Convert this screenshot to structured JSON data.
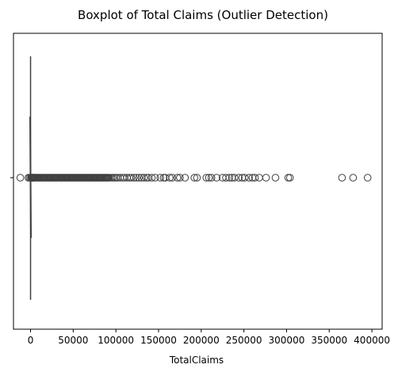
{
  "chart_data": {
    "type": "box",
    "title": "Boxplot of Total Claims (Outlier Detection)",
    "xlabel": "TotalClaims",
    "ylabel": "",
    "orientation": "horizontal",
    "xlim": [
      -20000,
      412000
    ],
    "x_ticks": [
      0,
      50000,
      100000,
      150000,
      200000,
      250000,
      300000,
      350000,
      400000
    ],
    "x_tick_labels": [
      "0",
      "50000",
      "100000",
      "150000",
      "200000",
      "250000",
      "300000",
      "350000",
      "400000"
    ],
    "y_tick_labels": [
      ""
    ],
    "grid": false,
    "box": {
      "min": 0,
      "q1": 0,
      "median": 0,
      "q3": 0,
      "max": 0
    },
    "outliers": [
      -12000,
      -2500,
      -1000,
      500,
      1000,
      1500,
      2000,
      2500,
      3000,
      3500,
      4000,
      5000,
      6000,
      7000,
      8000,
      9000,
      10000,
      11000,
      12000,
      13000,
      14000,
      15000,
      16000,
      17000,
      18000,
      19000,
      20000,
      21000,
      22000,
      23000,
      24000,
      25000,
      26000,
      27000,
      28000,
      29000,
      30000,
      31000,
      32000,
      33000,
      34000,
      35000,
      36000,
      37000,
      38000,
      39000,
      40000,
      41000,
      42000,
      43000,
      44000,
      45000,
      46000,
      47000,
      48000,
      49000,
      50000,
      51000,
      52000,
      53000,
      54000,
      55000,
      56000,
      57000,
      58000,
      59000,
      60000,
      61000,
      62000,
      63000,
      64000,
      65000,
      66000,
      67000,
      68000,
      69000,
      70000,
      71000,
      72000,
      73000,
      74000,
      75000,
      76000,
      77000,
      78000,
      79000,
      80000,
      81000,
      82000,
      83000,
      84000,
      85000,
      86000,
      87000,
      88000,
      89000,
      90000,
      91000,
      92000,
      94000,
      96000,
      98000,
      100000,
      102000,
      105000,
      108000,
      110000,
      113000,
      116000,
      118000,
      121000,
      124000,
      127000,
      130000,
      133000,
      136000,
      138000,
      142000,
      146000,
      152000,
      156000,
      158000,
      163000,
      166000,
      172000,
      175000,
      181000,
      192000,
      195000,
      206000,
      209000,
      212000,
      218000,
      225000,
      229000,
      233000,
      236000,
      239000,
      244000,
      248000,
      251000,
      256000,
      260000,
      263000,
      268000,
      276000,
      287000,
      302000,
      304000,
      365000,
      378000,
      395000
    ],
    "colors": {
      "outlier_edge": "#404040",
      "box_line": "#404040",
      "axes": "#000000",
      "background": "#ffffff"
    }
  }
}
